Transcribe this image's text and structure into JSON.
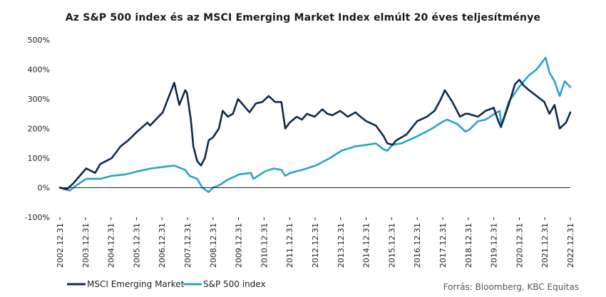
{
  "chart_data": {
    "type": "line",
    "title": "Az S&P 500 index és az MSCI Emerging Market Index elmúlt 20 éves teljesítménye",
    "xlabel": "",
    "ylabel": "",
    "ylim": [
      -100,
      500
    ],
    "yticks": [
      -100,
      0,
      100,
      200,
      300,
      400,
      500
    ],
    "ytick_labels": [
      "-100%",
      "0%",
      "100%",
      "200%",
      "300%",
      "400%",
      "500%"
    ],
    "xlim": [
      2002.92,
      2022.92
    ],
    "xtick_labels": [
      "2002.12.31",
      "2003.12.31",
      "2004.12.31",
      "2005.12.31",
      "2006.12.31",
      "2007.12.31",
      "2008.12.31",
      "2009.12.31",
      "2010.12.31",
      "2011.12.31",
      "2012.12.31",
      "2013.12.31",
      "2014.12.31",
      "2015.12.31",
      "2016.12.31",
      "2017.12.31",
      "2018.12.31",
      "2019.12.31",
      "2020.12.31",
      "2021.12.31",
      "2022.12.31"
    ],
    "grid": false,
    "legend_position": "bottom-left",
    "colors": {
      "msci": "#0f2a4d",
      "sp": "#29a3cc"
    },
    "series": [
      {
        "name": "MSCI Emerging Market",
        "x": [
          2002.92,
          2003.2,
          2003.45,
          2003.7,
          2003.95,
          2004.3,
          2004.5,
          2004.95,
          2005.3,
          2005.6,
          2005.95,
          2006.35,
          2006.45,
          2006.95,
          2007.4,
          2007.6,
          2007.83,
          2007.9,
          2008.05,
          2008.15,
          2008.3,
          2008.45,
          2008.6,
          2008.75,
          2008.92,
          2009.15,
          2009.3,
          2009.5,
          2009.7,
          2009.9,
          2010.35,
          2010.6,
          2010.85,
          2011.1,
          2011.35,
          2011.6,
          2011.75,
          2011.92,
          2012.2,
          2012.4,
          2012.6,
          2012.9,
          2013.2,
          2013.4,
          2013.6,
          2013.9,
          2014.2,
          2014.5,
          2014.7,
          2014.92,
          2015.3,
          2015.6,
          2015.75,
          2015.95,
          2016.1,
          2016.5,
          2016.92,
          2017.3,
          2017.6,
          2017.85,
          2018.0,
          2018.3,
          2018.6,
          2018.8,
          2018.92,
          2019.3,
          2019.6,
          2019.92,
          2020.1,
          2020.2,
          2020.5,
          2020.75,
          2020.92,
          2021.1,
          2021.3,
          2021.6,
          2021.9,
          2022.1,
          2022.3,
          2022.5,
          2022.75,
          2022.92
        ],
        "values": [
          0,
          -5,
          15,
          40,
          65,
          50,
          80,
          100,
          140,
          160,
          190,
          220,
          210,
          255,
          355,
          280,
          330,
          320,
          230,
          140,
          90,
          75,
          100,
          160,
          170,
          200,
          260,
          240,
          250,
          300,
          255,
          285,
          290,
          310,
          290,
          290,
          200,
          220,
          240,
          230,
          250,
          240,
          265,
          250,
          245,
          260,
          240,
          255,
          240,
          225,
          210,
          175,
          150,
          145,
          160,
          180,
          225,
          240,
          260,
          300,
          330,
          290,
          240,
          250,
          250,
          240,
          260,
          270,
          225,
          205,
          280,
          350,
          365,
          345,
          330,
          310,
          290,
          250,
          280,
          200,
          220,
          255
        ]
      },
      {
        "name": "S&P 500 index",
        "x": [
          2002.92,
          2003.3,
          2003.6,
          2003.95,
          2004.5,
          2004.95,
          2005.5,
          2005.95,
          2006.5,
          2006.95,
          2007.4,
          2007.83,
          2008.0,
          2008.3,
          2008.5,
          2008.75,
          2008.92,
          2009.2,
          2009.45,
          2009.7,
          2009.95,
          2010.4,
          2010.5,
          2010.95,
          2011.3,
          2011.6,
          2011.75,
          2011.95,
          2012.4,
          2012.95,
          2013.5,
          2013.95,
          2014.5,
          2014.95,
          2015.3,
          2015.6,
          2015.75,
          2015.95,
          2016.3,
          2016.95,
          2017.5,
          2017.95,
          2018.1,
          2018.5,
          2018.8,
          2018.95,
          2019.3,
          2019.6,
          2019.95,
          2020.15,
          2020.22,
          2020.5,
          2020.95,
          2021.3,
          2021.6,
          2021.95,
          2022.1,
          2022.3,
          2022.5,
          2022.7,
          2022.92
        ],
        "values": [
          0,
          -10,
          10,
          30,
          30,
          40,
          45,
          55,
          65,
          70,
          75,
          60,
          40,
          30,
          0,
          -15,
          0,
          10,
          25,
          35,
          45,
          50,
          30,
          55,
          65,
          60,
          40,
          50,
          60,
          75,
          100,
          125,
          140,
          145,
          150,
          130,
          125,
          145,
          150,
          175,
          200,
          225,
          230,
          215,
          190,
          195,
          225,
          230,
          250,
          260,
          210,
          290,
          345,
          380,
          400,
          440,
          390,
          360,
          310,
          360,
          340
        ]
      }
    ],
    "legend": [
      "MSCI Emerging Market",
      "S&P 500 index"
    ],
    "source": "Forrás: Bloomberg, KBC Equitas"
  }
}
